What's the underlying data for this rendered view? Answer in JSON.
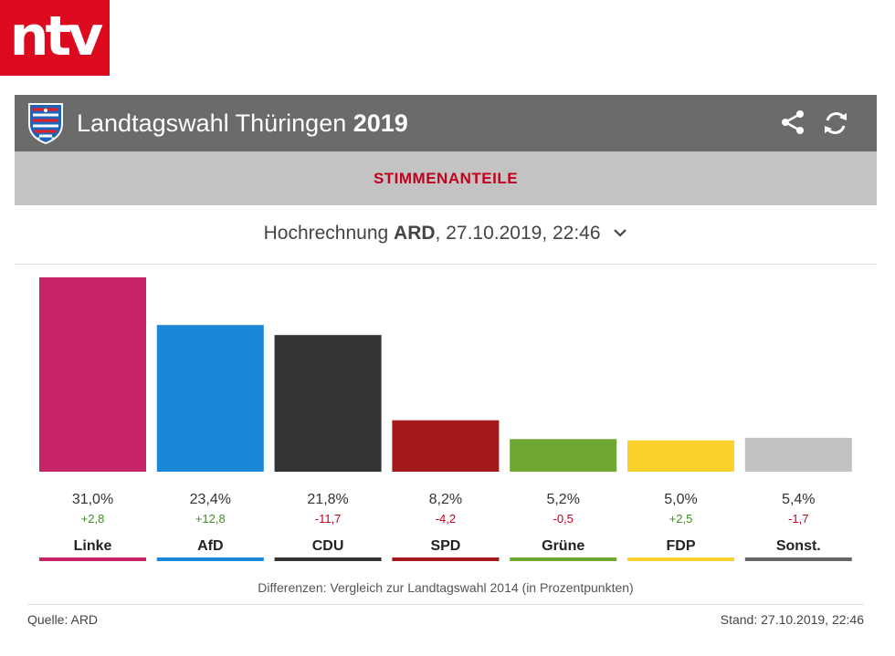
{
  "logo": {
    "text": "ntv"
  },
  "header": {
    "title_main": "Landtagswahl Thüringen",
    "title_year": "2019",
    "share_icon": "share-icon",
    "refresh_icon": "refresh-icon"
  },
  "tab": {
    "label": "STIMMENANTEILE"
  },
  "projection": {
    "prefix": "Hochrechnung",
    "source": "ARD",
    "datetime": ", 27.10.2019, 22:46"
  },
  "colors": {
    "positive": "#3e8e27",
    "negative": "#c1001f",
    "tab": "#c1001f"
  },
  "chart_data": {
    "type": "bar",
    "categories": [
      "Linke",
      "AfD",
      "CDU",
      "SPD",
      "Grüne",
      "FDP",
      "Sonst."
    ],
    "values": [
      31.0,
      23.4,
      21.8,
      8.2,
      5.2,
      5.0,
      5.4
    ],
    "value_labels": [
      "31,0%",
      "23,4%",
      "21,8%",
      "8,2%",
      "5,2%",
      "5,0%",
      "5,4%"
    ],
    "diffs": [
      2.8,
      12.8,
      -11.7,
      -4.2,
      -0.5,
      2.5,
      -1.7
    ],
    "diff_labels": [
      "+2,8",
      "+12,8",
      "-11,7",
      "-4,2",
      "-0,5",
      "+2,5",
      "-1,7"
    ],
    "colors": [
      "#c72468",
      "#1a87d9",
      "#333333",
      "#a6191a",
      "#6ea833",
      "#fbd22d",
      "#c1c1c1"
    ],
    "underline_colors": [
      "#c72468",
      "#1a87d9",
      "#333333",
      "#a6191a",
      "#6ea833",
      "#fbd22d",
      "#666666"
    ],
    "ylim": [
      0,
      31.0
    ],
    "grid": false
  },
  "footer": {
    "note": "Differenzen: Vergleich zur Landtagswahl 2014 (in Prozentpunkten)",
    "source": "Quelle: ARD",
    "stand": "Stand: 27.10.2019, 22:46"
  }
}
